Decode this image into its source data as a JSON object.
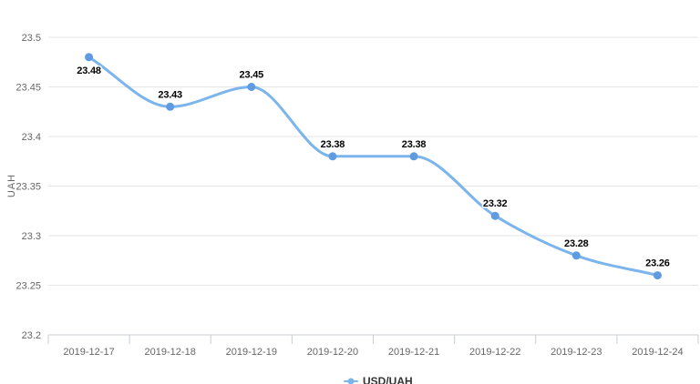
{
  "chart_data": {
    "type": "line",
    "smooth": true,
    "title": "",
    "xlabel": "",
    "ylabel": "UAH",
    "categories": [
      "2019-12-17",
      "2019-12-18",
      "2019-12-19",
      "2019-12-20",
      "2019-12-21",
      "2019-12-22",
      "2019-12-23",
      "2019-12-24"
    ],
    "series": [
      {
        "name": "USD/UAH",
        "values": [
          23.48,
          23.43,
          23.45,
          23.38,
          23.38,
          23.32,
          23.28,
          23.26
        ],
        "labels": [
          "23.48",
          "23.43",
          "23.45",
          "23.38",
          "23.38",
          "23.32",
          "23.28",
          "23.26"
        ]
      }
    ],
    "ylim": [
      23.2,
      23.5
    ],
    "y_ticks": [
      {
        "value": 23.5,
        "label": "23.5"
      },
      {
        "value": 23.45,
        "label": "23.45"
      },
      {
        "value": 23.4,
        "label": "23.4"
      },
      {
        "value": 23.35,
        "label": "23.35"
      },
      {
        "value": 23.3,
        "label": "23.3"
      },
      {
        "value": 23.25,
        "label": "23.25"
      },
      {
        "value": 23.2,
        "label": "23.2"
      }
    ],
    "grid": "horizontal",
    "legend_position": "bottom-center",
    "data_label_positions": [
      "below",
      "above",
      "above",
      "above",
      "above",
      "above",
      "above",
      "above"
    ],
    "colors": {
      "line": "#7cb5ec",
      "marker": "#5f9be0",
      "grid": "#e6e6e6",
      "axis": "#c8ccd3",
      "tick_label": "#666666",
      "data_label": "#000000",
      "legend_text": "#333333"
    }
  }
}
